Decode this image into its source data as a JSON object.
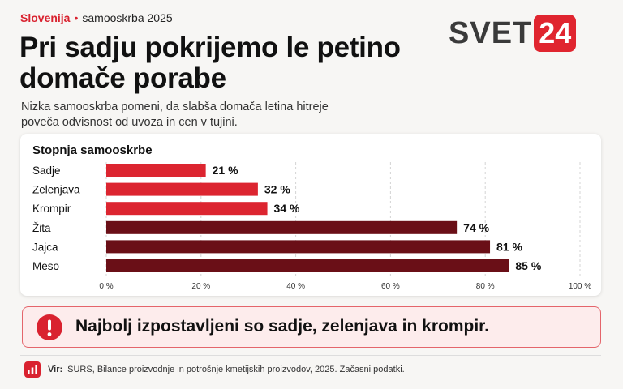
{
  "header": {
    "region": "Slovenija",
    "separator": "•",
    "topic": "samooskrba 2025",
    "headline": "Pri sadju pokrijemo le petino domače porabe",
    "subtitle": "Nizka samooskrba pomeni, da slabša domača letina hitreje poveča odvisnost od uvoza in cen v tujini."
  },
  "logo": {
    "word": "SVET",
    "number": "24"
  },
  "colors": {
    "accent": "#e0252f",
    "bar_low": "#dc2530",
    "bar_high": "#6a0f17"
  },
  "chart_data": {
    "type": "bar",
    "orientation": "horizontal",
    "title": "Stopnja samooskrbe",
    "categories": [
      "Sadje",
      "Zelenjava",
      "Krompir",
      "Žita",
      "Jajca",
      "Meso"
    ],
    "values": [
      21,
      32,
      34,
      74,
      81,
      85
    ],
    "value_labels": [
      "21 %",
      "32 %",
      "34 %",
      "74 %",
      "81 %",
      "85 %"
    ],
    "xlim": [
      0,
      100
    ],
    "xticks": [
      0,
      20,
      40,
      60,
      80,
      100
    ],
    "xtick_labels": [
      "0 %",
      "20 %",
      "40 %",
      "60 %",
      "80 %",
      "100 %"
    ],
    "grid": "vertical dashed",
    "bar_colors": [
      "#dc2530",
      "#dc2530",
      "#dc2530",
      "#6a0f17",
      "#6a0f17",
      "#6a0f17"
    ]
  },
  "callout": {
    "icon": "exclamation-circle-icon",
    "text": "Najbolj izpostavljeni so sadje, zelenjava in krompir."
  },
  "source": {
    "icon": "bar-chart-icon",
    "label": "Vir:",
    "text": "SURS, Bilance proizvodnje in potrošnje kmetijskih proizvodov, 2025. Začasni podatki."
  }
}
